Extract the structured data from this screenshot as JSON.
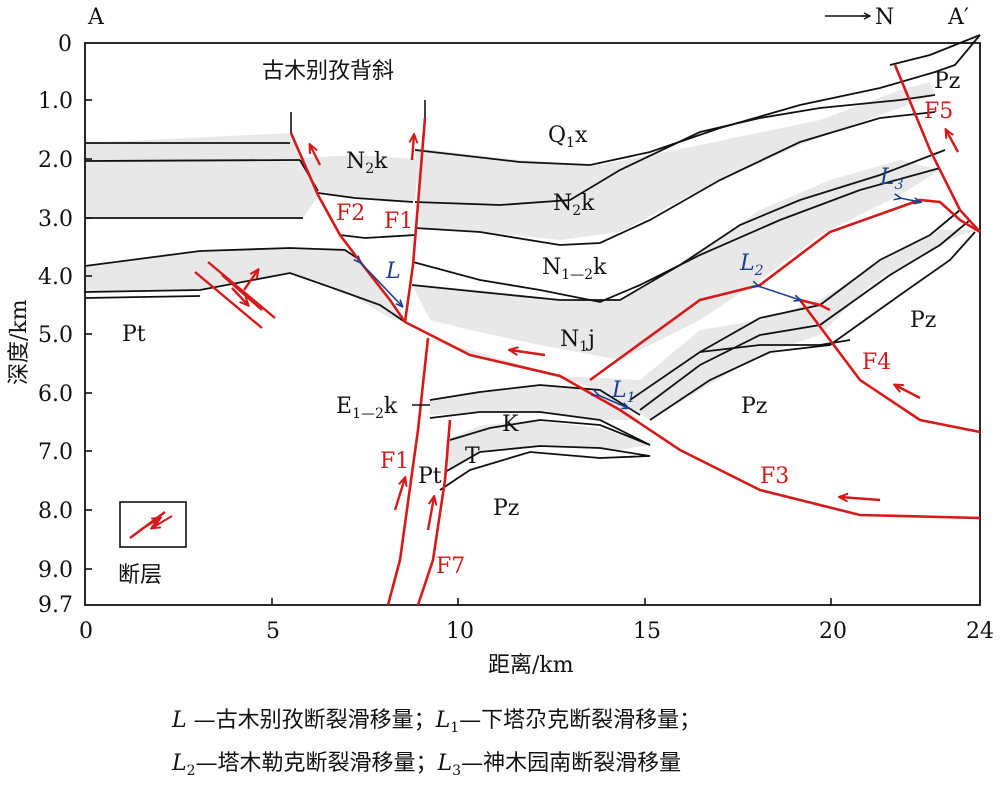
{
  "header": {
    "left_label": "A",
    "right_label": "A′",
    "north_label": "N"
  },
  "anticline_label": "古木别孜背斜",
  "axes": {
    "y_title": "深度/km",
    "x_title": "距离/km",
    "y_ticks": [
      "0",
      "1.0",
      "2.0",
      "3.0",
      "4.0",
      "5.0",
      "6.0",
      "7.0",
      "8.0",
      "9.0",
      "9.7"
    ],
    "x_ticks": [
      "0",
      "5",
      "10",
      "15",
      "20",
      "24"
    ]
  },
  "strata_labels": {
    "q1x_main": "Q",
    "q1x_sub": "1",
    "q1x_tail": "x",
    "n2k_left_main": "N",
    "n2k_left_sub": "2",
    "n2k_left_tail": "k",
    "n2k_center_main": "N",
    "n2k_center_sub": "2",
    "n2k_center_tail": "k",
    "n12k_main": "N",
    "n12k_sub": "1—2",
    "n12k_tail": "k",
    "n1j_main": "N",
    "n1j_sub": "1",
    "n1j_tail": "j",
    "e12k_main": "E",
    "e12k_sub": "1—2",
    "e12k_tail": "k",
    "k": "K",
    "t": "T",
    "pt_left": "Pt",
    "pt_mid": "Pt",
    "pz_top_right": "Pz",
    "pz_right": "Pz",
    "pz_center": "Pz",
    "pz_bottom": "Pz"
  },
  "faults": {
    "f1_upper": "F1",
    "f2": "F2",
    "f1_lower": "F1",
    "f7": "F7",
    "f3": "F3",
    "f4": "F4",
    "f5": "F5"
  },
  "slip_labels": {
    "l": "L",
    "l1_main": "L",
    "l1_sub": "1",
    "l2_main": "L",
    "l2_sub": "2",
    "l3_main": "L",
    "l3_sub": "3"
  },
  "legend": {
    "label": "断层"
  },
  "caption": {
    "line1_l_main": "L",
    "line1_l_text": " —古木别孜断裂滑移量；",
    "line1_l1_main": "L",
    "line1_l1_sub": "1",
    "line1_l1_text": "—下塔尕克断裂滑移量；",
    "line2_l2_main": "L",
    "line2_l2_sub": "2",
    "line2_l2_text": "—塔木勒克断裂滑移量；",
    "line2_l3_main": "L",
    "line2_l3_sub": "3",
    "line2_l3_text": "—神木园南断裂滑移量"
  },
  "colors": {
    "fault": "#d61a1a",
    "slip": "#1b3f8f",
    "fill": "#e8e8e8",
    "line": "#111111"
  }
}
